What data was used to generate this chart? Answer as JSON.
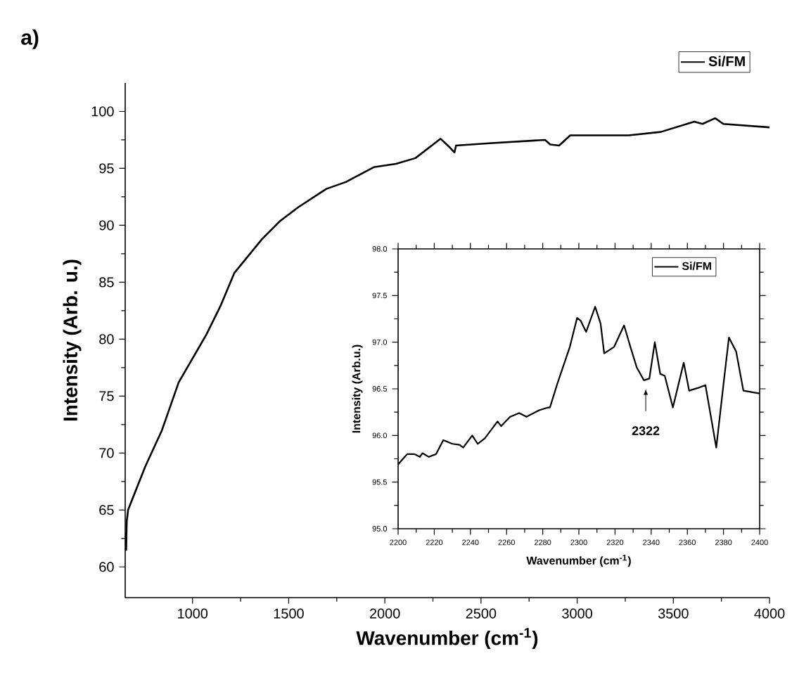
{
  "chart_data": [
    {
      "type": "line",
      "title": "a)",
      "xlabel": "Wavenumber (cm$^{-1}$)",
      "ylabel": "Intensity (Arb. u.)",
      "xlim": [
        650,
        4000
      ],
      "ylim": [
        57.3,
        102.5
      ],
      "xticks": [
        1000,
        1500,
        2000,
        2500,
        3000,
        3500,
        4000
      ],
      "yticks": [
        60,
        65,
        70,
        75,
        80,
        85,
        90,
        95,
        100
      ],
      "grid": false,
      "legend": "top right",
      "series": [
        {
          "name": "Si/FM",
          "color": "#000000",
          "x": [
            652,
            655,
            658,
            665,
            700,
            754,
            841,
            928,
            1072,
            1145,
            1217,
            1362,
            1457,
            1551,
            1696,
            1797,
            1942,
            2058,
            2159,
            2290,
            2340,
            2362,
            2370,
            2543,
            2833,
            2860,
            2906,
            2964,
            3268,
            3435,
            3609,
            3652,
            3717,
            3760,
            4000
          ],
          "values": [
            63,
            61.5,
            64,
            65,
            66.5,
            68.8,
            72,
            76.2,
            80.4,
            82.9,
            85.8,
            88.8,
            90.4,
            91.6,
            93.2,
            93.8,
            95.1,
            95.4,
            95.9,
            97.6,
            96.8,
            96.4,
            97,
            97.2,
            97.5,
            97.1,
            97,
            97.9,
            97.9,
            98.2,
            99.1,
            98.9,
            99.4,
            98.9,
            98.6
          ]
        }
      ]
    },
    {
      "type": "line",
      "xlabel": "Wavenumber (cm$^{-1}$)",
      "ylabel": "Intensity (Arb.u.)",
      "xlim": [
        2200,
        2400
      ],
      "ylim": [
        95,
        98
      ],
      "xticks": [
        2200,
        2220,
        2240,
        2260,
        2280,
        2300,
        2320,
        2340,
        2360,
        2380,
        2400
      ],
      "yticks": [
        {
          "value": 95,
          "label": "95.0"
        },
        {
          "value": 95.5,
          "label": "95.5"
        },
        {
          "value": 96,
          "label": "96.0"
        },
        {
          "value": 96.5,
          "label": "96.5"
        },
        {
          "value": 97,
          "label": "97.0"
        },
        {
          "value": 97.5,
          "label": "97.5"
        },
        {
          "value": 98,
          "label": "98.0"
        }
      ],
      "grid": false,
      "legend": "top right",
      "annotations": [
        "2322"
      ],
      "series": [
        {
          "name": "Si/FM",
          "color": "#000000",
          "x": [
            2200,
            2205,
            2209,
            2212,
            2213.5,
            2217,
            2221,
            2225,
            2230,
            2234,
            2236,
            2241,
            2244,
            2248,
            2255,
            2257,
            2262,
            2267,
            2271,
            2278,
            2283,
            2284,
            2288,
            2295,
            2299,
            2301,
            2304,
            2309,
            2312,
            2314,
            2319.5,
            2325,
            2328.5,
            2332,
            2336,
            2339,
            2342,
            2345,
            2347.5,
            2352,
            2358,
            2361,
            2366,
            2370,
            2376,
            2380,
            2383,
            2387,
            2391,
            2400
          ],
          "values": [
            95.69,
            95.8,
            95.8,
            95.77,
            95.81,
            95.77,
            95.8,
            95.95,
            95.91,
            95.9,
            95.87,
            96.0,
            95.91,
            95.97,
            96.15,
            96.1,
            96.2,
            96.24,
            96.2,
            96.27,
            96.3,
            96.3,
            96.55,
            96.95,
            97.26,
            97.23,
            97.11,
            97.38,
            97.2,
            96.88,
            96.95,
            97.18,
            96.95,
            96.73,
            96.59,
            96.61,
            97.0,
            96.66,
            96.64,
            96.3,
            96.78,
            96.48,
            96.51,
            96.54,
            95.87,
            96.55,
            97.05,
            96.9,
            96.48,
            96.45
          ]
        }
      ]
    }
  ]
}
